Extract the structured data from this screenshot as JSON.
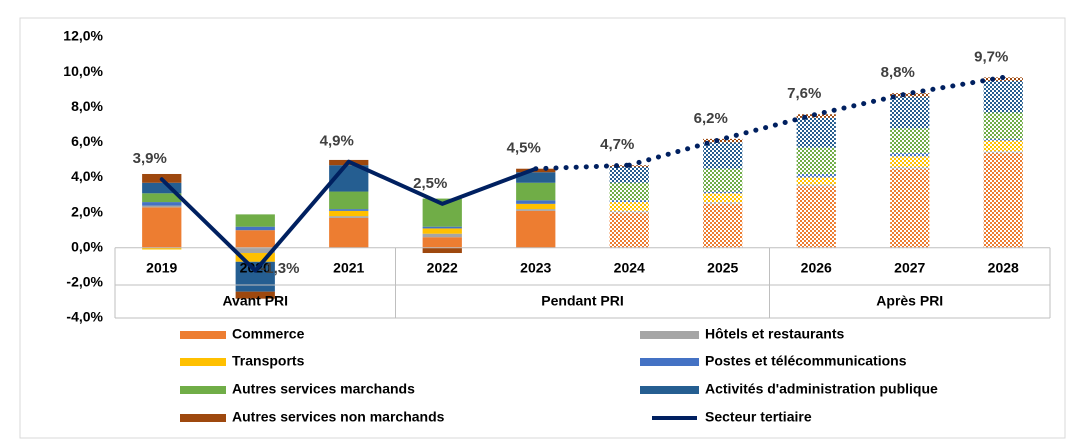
{
  "chart_data": {
    "type": "stacked_bar_line",
    "categories": [
      "2019",
      "2020",
      "2021",
      "2022",
      "2023",
      "2024",
      "2025",
      "2026",
      "2027",
      "2028"
    ],
    "groups": [
      {
        "name": "Avant PRI",
        "span": 3
      },
      {
        "name": "Pendant PRI",
        "span": 4
      },
      {
        "name": "Après PRI",
        "span": 3
      }
    ],
    "pattern_from": "2024",
    "dotted_from": "2023",
    "ylim": [
      -4,
      12
    ],
    "yticks": [
      {
        "value": -4,
        "label": "-4,0%"
      },
      {
        "value": -2,
        "label": "-2,0%"
      },
      {
        "value": 0,
        "label": "0,0%"
      },
      {
        "value": 2,
        "label": "2,0%"
      },
      {
        "value": 4,
        "label": "4,0%"
      },
      {
        "value": 6,
        "label": "6,0%"
      },
      {
        "value": 8,
        "label": "8,0%"
      },
      {
        "value": 10,
        "label": "10,0%"
      },
      {
        "value": 12,
        "label": "12,0%"
      }
    ],
    "series": [
      {
        "name": "Commerce",
        "color": "#ED7D31",
        "values": [
          2.3,
          1.0,
          1.7,
          0.6,
          2.1,
          2.0,
          2.5,
          3.5,
          4.5,
          5.4
        ]
      },
      {
        "name": "Hôtels et restaurants",
        "color": "#A5A5A5",
        "values": [
          0.1,
          -0.3,
          0.1,
          0.2,
          0.1,
          0.1,
          0.1,
          0.1,
          0.1,
          0.1
        ]
      },
      {
        "name": "Transports",
        "color": "#FFC000",
        "values": [
          -0.1,
          -0.5,
          0.3,
          0.3,
          0.3,
          0.5,
          0.5,
          0.4,
          0.6,
          0.6
        ]
      },
      {
        "name": "Postes et télécommunications",
        "color": "#4472C4",
        "values": [
          0.2,
          0.2,
          0.1,
          0.1,
          0.2,
          0.1,
          0.1,
          0.2,
          0.2,
          0.1
        ]
      },
      {
        "name": "Autres services marchands",
        "color": "#70AD47",
        "values": [
          0.5,
          0.7,
          1.0,
          1.6,
          1.0,
          1.0,
          1.3,
          1.5,
          1.4,
          1.5
        ]
      },
      {
        "name": "Activités d'administration publique",
        "color": "#255E91",
        "values": [
          0.6,
          -1.7,
          1.5,
          0.0,
          0.6,
          0.9,
          1.5,
          1.7,
          1.8,
          1.8
        ]
      },
      {
        "name": "Autres services non marchands",
        "color": "#9E480E",
        "values": [
          0.5,
          -0.4,
          0.3,
          -0.3,
          0.2,
          0.1,
          0.2,
          0.2,
          0.2,
          0.2
        ]
      }
    ],
    "line": {
      "name": "Secteur tertiaire",
      "color": "#002060",
      "values": [
        3.9,
        -1.3,
        4.9,
        2.5,
        4.5,
        4.7,
        6.2,
        7.6,
        8.8,
        9.7
      ],
      "value_labels": [
        "3,9%",
        "-1,3%",
        "4,9%",
        "2,5%",
        "4,5%",
        "4,7%",
        "6,2%",
        "7,6%",
        "8,8%",
        "9,7%"
      ]
    }
  }
}
